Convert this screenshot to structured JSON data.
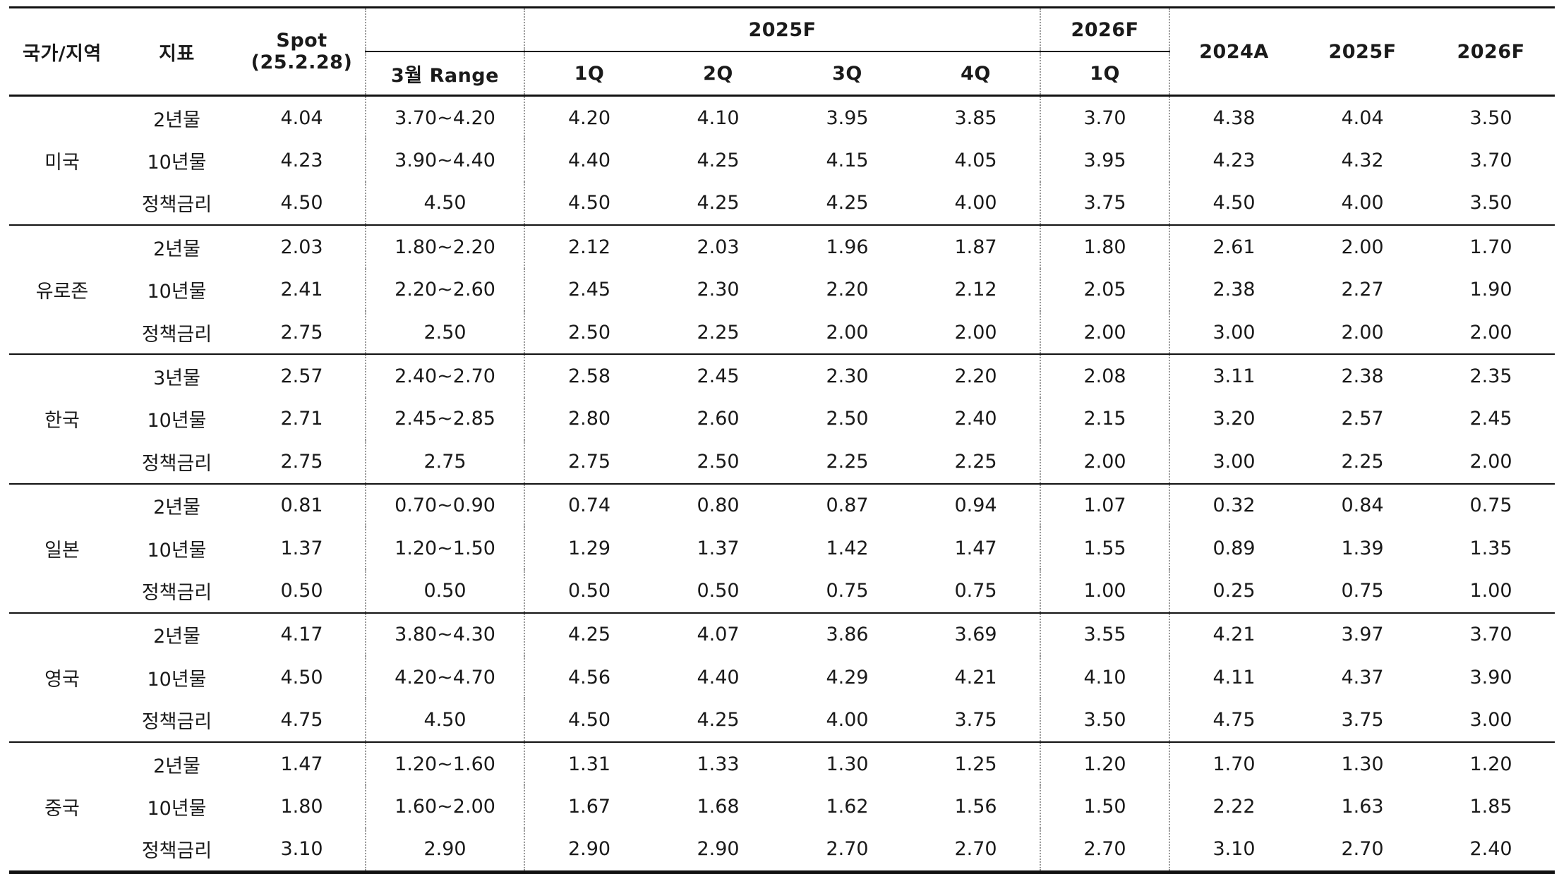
{
  "headers": {
    "country": "국가/지역",
    "indicator": "지표",
    "spot_line1": "Spot",
    "spot_line2": "(25.2.28)",
    "group_2025f": "2025F",
    "group_2026f": "2026F",
    "range": "3월 Range",
    "q_2025": [
      "1Q",
      "2Q",
      "3Q",
      "4Q"
    ],
    "q_2026": "1Q",
    "annual": [
      "2024A",
      "2025F",
      "2026F"
    ]
  },
  "regions": [
    {
      "name": "미국",
      "rows": [
        {
          "indicator": "2년물",
          "values": [
            "4.04",
            "3.70~4.20",
            "4.20",
            "4.10",
            "3.95",
            "3.85",
            "3.70",
            "4.38",
            "4.04",
            "3.50"
          ]
        },
        {
          "indicator": "10년물",
          "values": [
            "4.23",
            "3.90~4.40",
            "4.40",
            "4.25",
            "4.15",
            "4.05",
            "3.95",
            "4.23",
            "4.32",
            "3.70"
          ]
        },
        {
          "indicator": "정책금리",
          "values": [
            "4.50",
            "4.50",
            "4.50",
            "4.25",
            "4.25",
            "4.00",
            "3.75",
            "4.50",
            "4.00",
            "3.50"
          ]
        }
      ]
    },
    {
      "name": "유로존",
      "rows": [
        {
          "indicator": "2년물",
          "values": [
            "2.03",
            "1.80~2.20",
            "2.12",
            "2.03",
            "1.96",
            "1.87",
            "1.80",
            "2.61",
            "2.00",
            "1.70"
          ]
        },
        {
          "indicator": "10년물",
          "values": [
            "2.41",
            "2.20~2.60",
            "2.45",
            "2.30",
            "2.20",
            "2.12",
            "2.05",
            "2.38",
            "2.27",
            "1.90"
          ]
        },
        {
          "indicator": "정책금리",
          "values": [
            "2.75",
            "2.50",
            "2.50",
            "2.25",
            "2.00",
            "2.00",
            "2.00",
            "3.00",
            "2.00",
            "2.00"
          ]
        }
      ]
    },
    {
      "name": "한국",
      "rows": [
        {
          "indicator": "3년물",
          "values": [
            "2.57",
            "2.40~2.70",
            "2.58",
            "2.45",
            "2.30",
            "2.20",
            "2.08",
            "3.11",
            "2.38",
            "2.35"
          ]
        },
        {
          "indicator": "10년물",
          "values": [
            "2.71",
            "2.45~2.85",
            "2.80",
            "2.60",
            "2.50",
            "2.40",
            "2.15",
            "3.20",
            "2.57",
            "2.45"
          ]
        },
        {
          "indicator": "정책금리",
          "values": [
            "2.75",
            "2.75",
            "2.75",
            "2.50",
            "2.25",
            "2.25",
            "2.00",
            "3.00",
            "2.25",
            "2.00"
          ]
        }
      ]
    },
    {
      "name": "일본",
      "rows": [
        {
          "indicator": "2년물",
          "values": [
            "0.81",
            "0.70~0.90",
            "0.74",
            "0.80",
            "0.87",
            "0.94",
            "1.07",
            "0.32",
            "0.84",
            "0.75"
          ]
        },
        {
          "indicator": "10년물",
          "values": [
            "1.37",
            "1.20~1.50",
            "1.29",
            "1.37",
            "1.42",
            "1.47",
            "1.55",
            "0.89",
            "1.39",
            "1.35"
          ]
        },
        {
          "indicator": "정책금리",
          "values": [
            "0.50",
            "0.50",
            "0.50",
            "0.50",
            "0.75",
            "0.75",
            "1.00",
            "0.25",
            "0.75",
            "1.00"
          ]
        }
      ]
    },
    {
      "name": "영국",
      "rows": [
        {
          "indicator": "2년물",
          "values": [
            "4.17",
            "3.80~4.30",
            "4.25",
            "4.07",
            "3.86",
            "3.69",
            "3.55",
            "4.21",
            "3.97",
            "3.70"
          ]
        },
        {
          "indicator": "10년물",
          "values": [
            "4.50",
            "4.20~4.70",
            "4.56",
            "4.40",
            "4.29",
            "4.21",
            "4.10",
            "4.11",
            "4.37",
            "3.90"
          ]
        },
        {
          "indicator": "정책금리",
          "values": [
            "4.75",
            "4.50",
            "4.50",
            "4.25",
            "4.00",
            "3.75",
            "3.50",
            "4.75",
            "3.75",
            "3.00"
          ]
        }
      ]
    },
    {
      "name": "중국",
      "rows": [
        {
          "indicator": "2년물",
          "values": [
            "1.47",
            "1.20~1.60",
            "1.31",
            "1.33",
            "1.30",
            "1.25",
            "1.20",
            "1.70",
            "1.30",
            "1.20"
          ]
        },
        {
          "indicator": "10년물",
          "values": [
            "1.80",
            "1.60~2.00",
            "1.67",
            "1.68",
            "1.62",
            "1.56",
            "1.50",
            "2.22",
            "1.63",
            "1.85"
          ]
        },
        {
          "indicator": "정책금리",
          "values": [
            "3.10",
            "2.90",
            "2.90",
            "2.90",
            "2.70",
            "2.70",
            "2.70",
            "3.10",
            "2.70",
            "2.40"
          ]
        }
      ]
    }
  ]
}
